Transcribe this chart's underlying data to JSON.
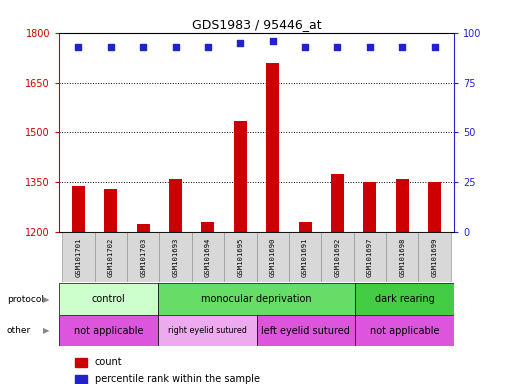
{
  "title": "GDS1983 / 95446_at",
  "samples": [
    "GSM101701",
    "GSM101702",
    "GSM101703",
    "GSM101693",
    "GSM101694",
    "GSM101695",
    "GSM101690",
    "GSM101691",
    "GSM101692",
    "GSM101697",
    "GSM101698",
    "GSM101699"
  ],
  "bar_values": [
    1338,
    1330,
    1225,
    1360,
    1230,
    1535,
    1710,
    1230,
    1375,
    1350,
    1360,
    1350
  ],
  "percentile_values": [
    93,
    93,
    93,
    93,
    93,
    95,
    96,
    93,
    93,
    93,
    93,
    93
  ],
  "ylim_left": [
    1200,
    1800
  ],
  "ylim_right": [
    0,
    100
  ],
  "yticks_left": [
    1200,
    1350,
    1500,
    1650,
    1800
  ],
  "yticks_right": [
    0,
    25,
    50,
    75,
    100
  ],
  "bar_color": "#cc0000",
  "dot_color": "#2222cc",
  "protocol_groups": [
    {
      "label": "control",
      "start": 0,
      "end": 3,
      "color": "#ccffcc"
    },
    {
      "label": "monocular deprivation",
      "start": 3,
      "end": 9,
      "color": "#66dd66"
    },
    {
      "label": "dark rearing",
      "start": 9,
      "end": 12,
      "color": "#44cc44"
    }
  ],
  "other_groups": [
    {
      "label": "not applicable",
      "start": 0,
      "end": 3,
      "color": "#dd55dd"
    },
    {
      "label": "right eyelid sutured",
      "start": 3,
      "end": 6,
      "color": "#eeaaee"
    },
    {
      "label": "left eyelid sutured",
      "start": 6,
      "end": 9,
      "color": "#dd55dd"
    },
    {
      "label": "not applicable",
      "start": 9,
      "end": 12,
      "color": "#dd55dd"
    }
  ],
  "legend_items": [
    {
      "label": "count",
      "color": "#cc0000"
    },
    {
      "label": "percentile rank within the sample",
      "color": "#2222cc"
    }
  ],
  "tick_label_color_left": "#cc0000",
  "tick_label_color_right": "#2222cc",
  "label_fontsize": 7,
  "tick_fontsize": 7,
  "bar_width": 0.4
}
